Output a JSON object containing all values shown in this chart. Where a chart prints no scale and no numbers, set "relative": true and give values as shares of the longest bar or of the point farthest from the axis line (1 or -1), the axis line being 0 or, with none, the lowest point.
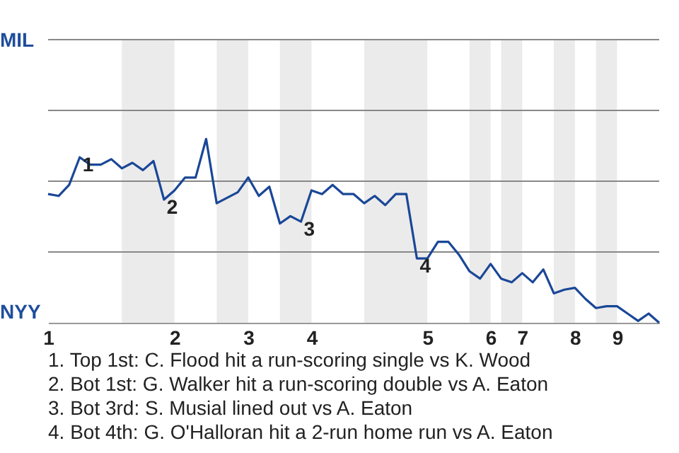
{
  "chart_data": {
    "type": "line",
    "relative": true,
    "categories": [
      "1",
      null,
      null,
      null,
      null,
      null,
      null,
      null,
      null,
      null,
      null,
      null,
      "2",
      null,
      null,
      null,
      null,
      null,
      null,
      "3",
      null,
      null,
      null,
      null,
      null,
      "4",
      null,
      null,
      null,
      null,
      null,
      null,
      null,
      null,
      null,
      null,
      "5",
      null,
      null,
      null,
      null,
      null,
      "6",
      null,
      null,
      "7",
      null,
      null,
      null,
      null,
      "8",
      null,
      null,
      null,
      "9",
      null,
      null,
      null,
      null
    ],
    "series": [
      {
        "color": "#1a4797",
        "values": [
          0.7,
          0.69,
          0.75,
          0.9,
          0.86,
          0.86,
          0.89,
          0.84,
          0.87,
          0.83,
          0.88,
          0.67,
          0.72,
          0.79,
          0.79,
          1,
          0.65,
          0.68,
          0.71,
          0.79,
          0.69,
          0.74,
          0.54,
          0.58,
          0.55,
          0.72,
          0.7,
          0.75,
          0.7,
          0.7,
          0.65,
          0.69,
          0.64,
          0.7,
          0.7,
          0.35,
          0.35,
          0.44,
          0.44,
          0.37,
          0.28,
          0.24,
          0.32,
          0.24,
          0.22,
          0.27,
          0.22,
          0.29,
          0.16,
          0.18,
          0.19,
          0.13,
          0.08,
          0.09,
          0.09,
          0.05,
          0.01,
          0.05,
          0
        ]
      }
    ],
    "ref_lines": [
      {
        "axis": "y",
        "value": 0.385,
        "color": "#888888"
      },
      {
        "axis": "y",
        "value": 0.77,
        "color": "#888888"
      },
      {
        "axis": "y",
        "value": 1.155,
        "color": "#888888"
      },
      {
        "axis": "y",
        "value": 1.54,
        "color": "#888888"
      }
    ],
    "annotations": [
      {
        "text": "1",
        "y": 0.9
      },
      {
        "text": "2",
        "y": 0.67
      },
      {
        "text": "3",
        "y": 0.55
      },
      {
        "text": "4",
        "y": 0.35
      },
      "MIL",
      "NYY",
      "1. Top 1st: C. Flood hit a run-scoring single vs K. Wood",
      "2. Bot 1st: G. Walker hit a run-scoring double vs A. Eaton",
      "3. Bot 3rd: S. Musial lined out vs A. Eaton",
      "4. Bot 4th: G. O'Halloran hit a 2-run home run vs A. Eaton"
    ]
  }
}
